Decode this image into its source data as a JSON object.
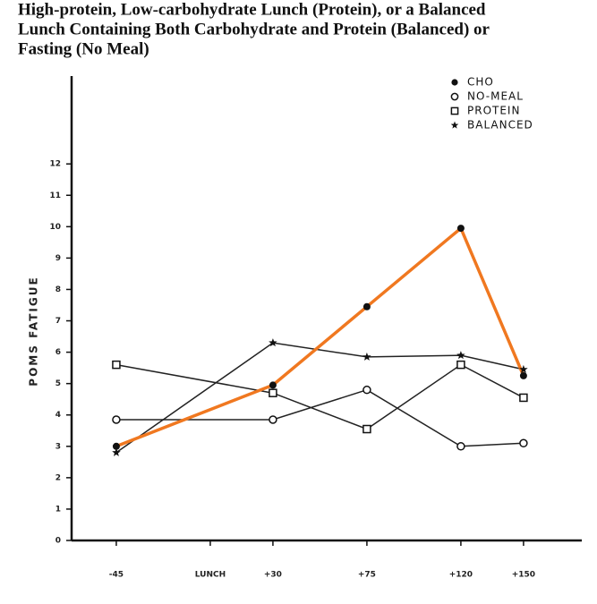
{
  "chart_data": {
    "type": "line",
    "caption": [
      "High-protein, Low-carbohydrate Lunch (Protein), or a Balanced",
      "Lunch Containing Both Carbohydrate and Protein (Balanced) or",
      "Fasting (No Meal)"
    ],
    "ylabel": "POMS FATIGUE",
    "x": [
      -45,
      30,
      75,
      120,
      150
    ],
    "xlim": [
      -66.4,
      177.9
    ],
    "xticks": [
      {
        "value": -45,
        "label": "-45"
      },
      {
        "value": 0,
        "label": "LUNCH"
      },
      {
        "value": 30,
        "label": "+30"
      },
      {
        "value": 75,
        "label": "+75"
      },
      {
        "value": 120,
        "label": "+120"
      },
      {
        "value": 150,
        "label": "+150"
      }
    ],
    "ylim": [
      0,
      14.8
    ],
    "yticks": [
      0,
      1,
      2,
      3,
      4,
      5,
      6,
      7,
      8,
      9,
      10,
      11,
      12
    ],
    "legend": "upper right",
    "marker_color": "#111",
    "series": [
      {
        "name": "CHO",
        "marker": "circle-filled",
        "color": "#f07820",
        "values": [
          3.0,
          4.95,
          7.45,
          9.95,
          5.25
        ]
      },
      {
        "name": "NO-MEAL",
        "marker": "circle-open",
        "color": "#222",
        "values": [
          3.85,
          3.85,
          4.8,
          3.0,
          3.1
        ]
      },
      {
        "name": "PROTEIN",
        "marker": "square-open",
        "color": "#222",
        "values": [
          5.6,
          4.7,
          3.55,
          5.6,
          4.55
        ]
      },
      {
        "name": "BALANCED",
        "marker": "star",
        "color": "#222",
        "values": [
          2.8,
          6.3,
          5.85,
          5.9,
          5.45
        ]
      }
    ]
  }
}
